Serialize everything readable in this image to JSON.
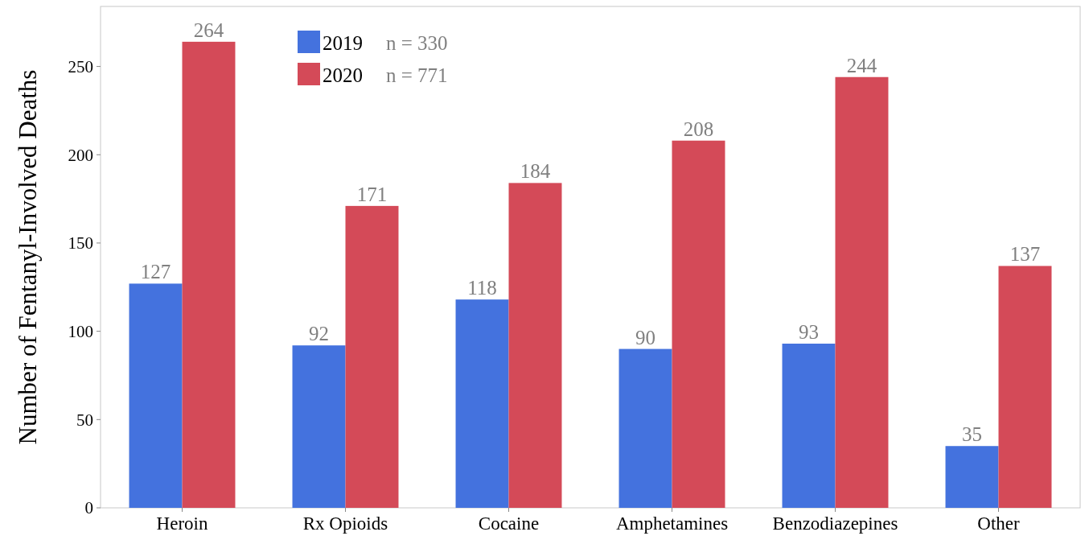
{
  "chart_data": {
    "type": "bar",
    "ylabel": "Number of Fentanyl-Involved Deaths",
    "categories": [
      "Heroin",
      "Rx Opioids",
      "Cocaine",
      "Amphetamines",
      "Benzodiazepines",
      "Other"
    ],
    "series": [
      {
        "name": "2019",
        "color": "#4472de",
        "values": [
          127,
          92,
          118,
          90,
          93,
          35
        ]
      },
      {
        "name": "2020",
        "color": "#d44a58",
        "values": [
          264,
          171,
          184,
          208,
          244,
          137
        ]
      }
    ],
    "annotations": [
      "n = 330",
      "n = 771"
    ],
    "ylim": [
      0,
      284
    ],
    "yticks": [
      0,
      50,
      100,
      150,
      200,
      250
    ],
    "data_labels": true,
    "legend": "top left",
    "grid": false
  }
}
